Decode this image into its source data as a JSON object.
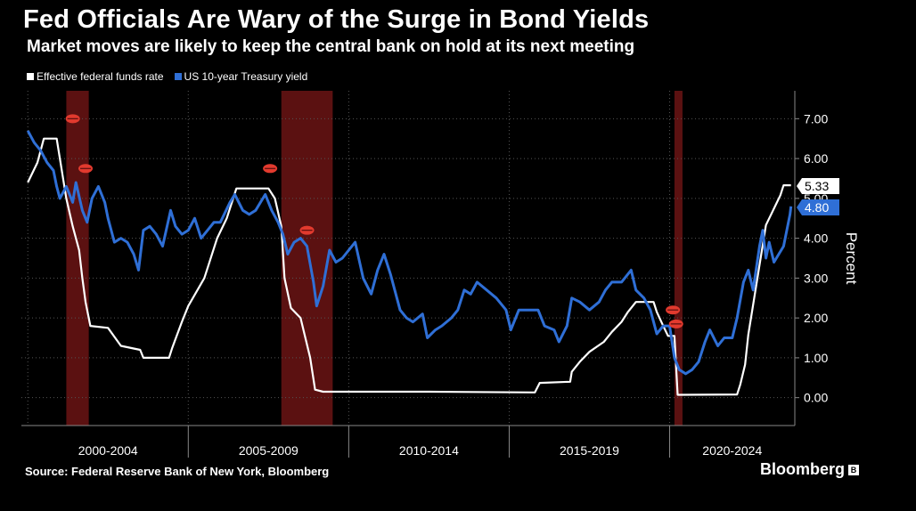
{
  "header": {
    "title": "Fed Officials Are Wary of the Surge in Bond Yields",
    "subtitle": "Market moves are likely to keep the central bank on hold at its next meeting"
  },
  "footer": {
    "source": "Source: Federal Reserve Bank of New York, Bloomberg",
    "brand": "Bloomberg",
    "brand_mark": "B"
  },
  "colors": {
    "fed_funds": "#ffffff",
    "treasury": "#2f6fd6",
    "recession": "#6b1414",
    "lips": "#e23a2e",
    "grid": "#555555"
  },
  "chart_data": {
    "type": "line",
    "title": "Fed Officials Are Wary of the Surge in Bond Yields",
    "ylabel": "Percent",
    "xlabel": "",
    "ylim": [
      -0.7,
      7.7
    ],
    "xlim": [
      1999.8,
      2023.9
    ],
    "yticks": [
      0,
      1,
      2,
      3,
      4,
      5,
      6,
      7
    ],
    "ytick_labels": [
      "0.00",
      "1.00",
      "2.00",
      "3.00",
      "4.00",
      "5.00",
      "6.00",
      "7.00"
    ],
    "x_periods": [
      {
        "label": "2000-2004",
        "start": 2000,
        "end": 2005
      },
      {
        "label": "2005-2009",
        "start": 2005,
        "end": 2010
      },
      {
        "label": "2010-2014",
        "start": 2010,
        "end": 2015
      },
      {
        "label": "2015-2019",
        "start": 2015,
        "end": 2020
      },
      {
        "label": "2020-2024",
        "start": 2020,
        "end": 2025
      }
    ],
    "recessions": [
      [
        2001.2,
        2001.9
      ],
      [
        2007.9,
        2009.5
      ],
      [
        2020.15,
        2020.4
      ]
    ],
    "markers": [
      {
        "x": 2001.4,
        "y": 7.0
      },
      {
        "x": 2001.8,
        "y": 5.75
      },
      {
        "x": 2007.55,
        "y": 5.75
      },
      {
        "x": 2008.7,
        "y": 4.2
      },
      {
        "x": 2020.1,
        "y": 2.2
      },
      {
        "x": 2020.2,
        "y": 1.85
      }
    ],
    "last_values": [
      {
        "name": "Effective federal funds rate",
        "value": "5.33"
      },
      {
        "name": "US 10-year Treasury yield",
        "value": "4.80"
      }
    ],
    "series": [
      {
        "name": "Effective federal funds rate",
        "color": "#ffffff",
        "points": [
          [
            2000.0,
            5.4
          ],
          [
            2000.3,
            5.9
          ],
          [
            2000.5,
            6.5
          ],
          [
            2000.9,
            6.5
          ],
          [
            2001.0,
            6.0
          ],
          [
            2001.2,
            5.0
          ],
          [
            2001.4,
            4.3
          ],
          [
            2001.6,
            3.7
          ],
          [
            2001.7,
            3.0
          ],
          [
            2001.8,
            2.4
          ],
          [
            2001.95,
            1.8
          ],
          [
            2002.5,
            1.75
          ],
          [
            2002.9,
            1.3
          ],
          [
            2003.5,
            1.2
          ],
          [
            2003.6,
            1.0
          ],
          [
            2004.4,
            1.0
          ],
          [
            2004.5,
            1.25
          ],
          [
            2004.8,
            1.9
          ],
          [
            2005.0,
            2.3
          ],
          [
            2005.5,
            3.0
          ],
          [
            2005.9,
            4.0
          ],
          [
            2006.2,
            4.5
          ],
          [
            2006.5,
            5.25
          ],
          [
            2007.5,
            5.25
          ],
          [
            2007.7,
            5.0
          ],
          [
            2007.9,
            4.3
          ],
          [
            2008.0,
            3.0
          ],
          [
            2008.2,
            2.25
          ],
          [
            2008.5,
            2.0
          ],
          [
            2008.8,
            1.0
          ],
          [
            2008.95,
            0.2
          ],
          [
            2009.2,
            0.15
          ],
          [
            2012.5,
            0.15
          ],
          [
            2015.8,
            0.13
          ],
          [
            2015.95,
            0.37
          ],
          [
            2016.9,
            0.4
          ],
          [
            2016.95,
            0.65
          ],
          [
            2017.2,
            0.9
          ],
          [
            2017.5,
            1.15
          ],
          [
            2017.95,
            1.4
          ],
          [
            2018.2,
            1.65
          ],
          [
            2018.5,
            1.9
          ],
          [
            2018.7,
            2.15
          ],
          [
            2018.95,
            2.4
          ],
          [
            2019.5,
            2.4
          ],
          [
            2019.6,
            2.15
          ],
          [
            2019.8,
            1.8
          ],
          [
            2019.95,
            1.55
          ],
          [
            2020.15,
            1.55
          ],
          [
            2020.25,
            0.07
          ],
          [
            2022.1,
            0.08
          ],
          [
            2022.2,
            0.33
          ],
          [
            2022.35,
            0.83
          ],
          [
            2022.45,
            1.58
          ],
          [
            2022.6,
            2.33
          ],
          [
            2022.75,
            3.08
          ],
          [
            2022.9,
            3.83
          ],
          [
            2023.0,
            4.33
          ],
          [
            2023.15,
            4.58
          ],
          [
            2023.3,
            4.83
          ],
          [
            2023.45,
            5.08
          ],
          [
            2023.55,
            5.33
          ],
          [
            2023.78,
            5.33
          ]
        ]
      },
      {
        "name": "US 10-year Treasury yield",
        "color": "#2f6fd6",
        "points": [
          [
            2000.0,
            6.7
          ],
          [
            2000.2,
            6.4
          ],
          [
            2000.4,
            6.2
          ],
          [
            2000.6,
            5.9
          ],
          [
            2000.8,
            5.7
          ],
          [
            2000.9,
            5.3
          ],
          [
            2001.0,
            5.0
          ],
          [
            2001.2,
            5.3
          ],
          [
            2001.4,
            4.9
          ],
          [
            2001.5,
            5.4
          ],
          [
            2001.7,
            4.7
          ],
          [
            2001.85,
            4.4
          ],
          [
            2002.0,
            5.0
          ],
          [
            2002.2,
            5.3
          ],
          [
            2002.4,
            4.9
          ],
          [
            2002.5,
            4.5
          ],
          [
            2002.7,
            3.9
          ],
          [
            2002.9,
            4.0
          ],
          [
            2003.1,
            3.9
          ],
          [
            2003.3,
            3.6
          ],
          [
            2003.45,
            3.2
          ],
          [
            2003.6,
            4.2
          ],
          [
            2003.8,
            4.3
          ],
          [
            2004.0,
            4.1
          ],
          [
            2004.2,
            3.8
          ],
          [
            2004.45,
            4.7
          ],
          [
            2004.6,
            4.3
          ],
          [
            2004.8,
            4.1
          ],
          [
            2005.0,
            4.2
          ],
          [
            2005.2,
            4.5
          ],
          [
            2005.4,
            4.0
          ],
          [
            2005.6,
            4.2
          ],
          [
            2005.8,
            4.4
          ],
          [
            2006.0,
            4.4
          ],
          [
            2006.3,
            4.9
          ],
          [
            2006.45,
            5.1
          ],
          [
            2006.7,
            4.7
          ],
          [
            2006.9,
            4.6
          ],
          [
            2007.1,
            4.7
          ],
          [
            2007.4,
            5.1
          ],
          [
            2007.6,
            4.7
          ],
          [
            2007.8,
            4.4
          ],
          [
            2007.95,
            4.1
          ],
          [
            2008.1,
            3.6
          ],
          [
            2008.3,
            3.9
          ],
          [
            2008.5,
            4.0
          ],
          [
            2008.7,
            3.8
          ],
          [
            2008.9,
            2.9
          ],
          [
            2009.0,
            2.3
          ],
          [
            2009.2,
            2.8
          ],
          [
            2009.4,
            3.7
          ],
          [
            2009.6,
            3.4
          ],
          [
            2009.8,
            3.5
          ],
          [
            2010.0,
            3.7
          ],
          [
            2010.2,
            3.9
          ],
          [
            2010.45,
            3.0
          ],
          [
            2010.7,
            2.6
          ],
          [
            2010.9,
            3.2
          ],
          [
            2011.1,
            3.6
          ],
          [
            2011.3,
            3.1
          ],
          [
            2011.6,
            2.2
          ],
          [
            2011.8,
            2.0
          ],
          [
            2012.0,
            1.9
          ],
          [
            2012.3,
            2.1
          ],
          [
            2012.45,
            1.5
          ],
          [
            2012.7,
            1.7
          ],
          [
            2012.9,
            1.8
          ],
          [
            2013.2,
            2.0
          ],
          [
            2013.4,
            2.2
          ],
          [
            2013.6,
            2.7
          ],
          [
            2013.8,
            2.6
          ],
          [
            2014.0,
            2.9
          ],
          [
            2014.3,
            2.7
          ],
          [
            2014.6,
            2.5
          ],
          [
            2014.9,
            2.2
          ],
          [
            2015.05,
            1.7
          ],
          [
            2015.3,
            2.2
          ],
          [
            2015.6,
            2.2
          ],
          [
            2015.9,
            2.2
          ],
          [
            2016.1,
            1.8
          ],
          [
            2016.4,
            1.7
          ],
          [
            2016.55,
            1.4
          ],
          [
            2016.8,
            1.8
          ],
          [
            2016.95,
            2.5
          ],
          [
            2017.2,
            2.4
          ],
          [
            2017.5,
            2.2
          ],
          [
            2017.8,
            2.4
          ],
          [
            2018.0,
            2.7
          ],
          [
            2018.2,
            2.9
          ],
          [
            2018.5,
            2.9
          ],
          [
            2018.8,
            3.2
          ],
          [
            2018.95,
            2.7
          ],
          [
            2019.2,
            2.5
          ],
          [
            2019.4,
            2.2
          ],
          [
            2019.6,
            1.6
          ],
          [
            2019.8,
            1.8
          ],
          [
            2020.0,
            1.8
          ],
          [
            2020.15,
            1.0
          ],
          [
            2020.3,
            0.7
          ],
          [
            2020.5,
            0.6
          ],
          [
            2020.7,
            0.7
          ],
          [
            2020.9,
            0.9
          ],
          [
            2021.1,
            1.4
          ],
          [
            2021.25,
            1.7
          ],
          [
            2021.5,
            1.3
          ],
          [
            2021.7,
            1.5
          ],
          [
            2021.95,
            1.5
          ],
          [
            2022.1,
            2.0
          ],
          [
            2022.3,
            2.9
          ],
          [
            2022.45,
            3.2
          ],
          [
            2022.6,
            2.7
          ],
          [
            2022.8,
            3.8
          ],
          [
            2022.9,
            4.2
          ],
          [
            2023.0,
            3.5
          ],
          [
            2023.1,
            3.9
          ],
          [
            2023.25,
            3.4
          ],
          [
            2023.4,
            3.6
          ],
          [
            2023.55,
            3.8
          ],
          [
            2023.65,
            4.2
          ],
          [
            2023.75,
            4.6
          ],
          [
            2023.78,
            4.8
          ]
        ]
      }
    ]
  }
}
